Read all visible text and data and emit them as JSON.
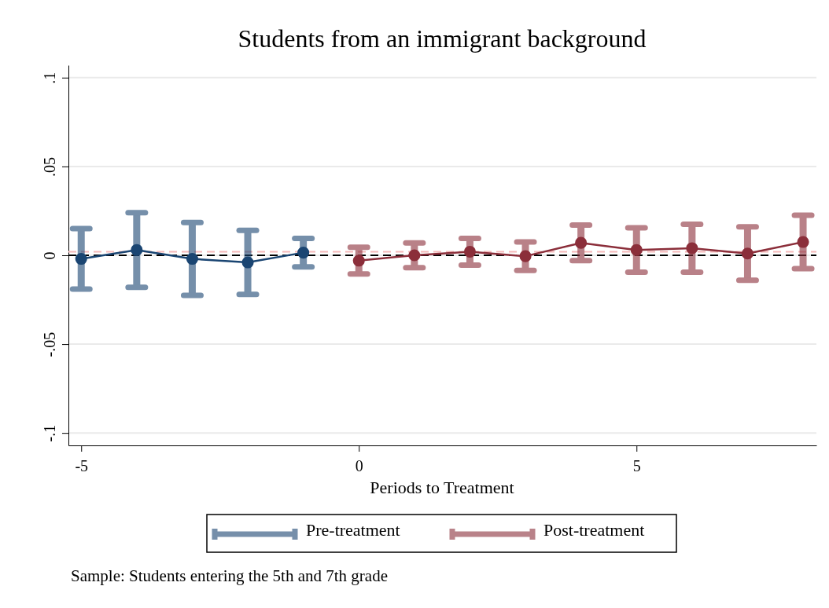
{
  "chart_data": {
    "type": "line",
    "title": "Students from an immigrant background",
    "xlabel": "Periods to Treatment",
    "annotations": [
      "Sample: Students entering the 5th and 7th grade"
    ],
    "series": [
      {
        "name": "Pre-treatment",
        "color": "#1a4572",
        "x": [
          -5,
          -4,
          -3,
          -2,
          -1
        ],
        "values": [
          -0.002,
          0.003,
          -0.002,
          -0.004,
          0.0015
        ],
        "errors": [
          0.017,
          0.021,
          0.0205,
          0.018,
          0.008
        ]
      },
      {
        "name": "Post-treatment",
        "color": "#8b2e3a",
        "x": [
          0,
          1,
          2,
          3,
          4,
          5,
          6,
          7,
          8
        ],
        "values": [
          -0.003,
          0,
          0.002,
          -0.0005,
          0.007,
          0.003,
          0.004,
          0.001,
          0.0075
        ],
        "errors": [
          0.0075,
          0.007,
          0.0075,
          0.008,
          0.01,
          0.0125,
          0.0135,
          0.015,
          0.015
        ]
      }
    ],
    "xlim": [
      -5.23,
      8.24
    ],
    "xticks": [
      -5,
      0,
      5
    ],
    "ylim": [
      -0.107,
      0.107
    ],
    "yticks": [
      {
        "value": -0.1,
        "label": "-.1"
      },
      {
        "value": -0.05,
        "label": "-.05"
      },
      {
        "value": 0,
        "label": "0"
      },
      {
        "value": 0.05,
        "label": ".05"
      },
      {
        "value": 0.1,
        "label": ".1"
      }
    ],
    "ref_lines": [
      {
        "axis": "y",
        "value": 0.002,
        "color": "#f4b8b8",
        "line_style": "dashed"
      },
      {
        "axis": "y",
        "value": 0,
        "color": "#000000",
        "line_style": "dashed"
      }
    ],
    "grid": "y",
    "legend": "bottom",
    "marker": "circle"
  }
}
